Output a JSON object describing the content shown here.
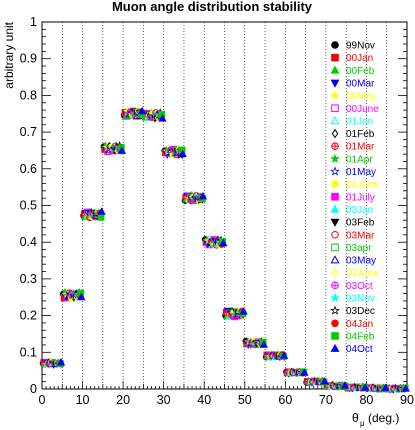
{
  "chart_data": {
    "type": "scatter",
    "title": "Muon angle distribution stability",
    "ylabel": "arbitrary unit",
    "xlabel_main": "θ",
    "xlabel_sub": "μ",
    "xlabel_unit": "(deg.)",
    "xlim": [
      0,
      90
    ],
    "ylim": [
      0,
      1
    ],
    "x_ticks": [
      "0",
      "10",
      "20",
      "30",
      "40",
      "50",
      "60",
      "70",
      "80",
      "90"
    ],
    "y_ticks": [
      "0",
      "0.1",
      "0.2",
      "0.3",
      "0.4",
      "0.5",
      "0.6",
      "0.7",
      "0.8",
      "0.9",
      "1"
    ],
    "grid": "vertical dotted lines at each 5 deg",
    "legend_position": "top-right",
    "bin_centers": [
      2.5,
      7.5,
      12.5,
      17.5,
      22.5,
      27.5,
      32.5,
      37.5,
      42.5,
      47.5,
      52.5,
      57.5,
      62.5,
      67.5,
      72.5,
      77.5,
      82.5,
      87.5
    ],
    "bin_values": [
      0.07,
      0.255,
      0.475,
      0.655,
      0.75,
      0.745,
      0.645,
      0.52,
      0.4,
      0.205,
      0.125,
      0.09,
      0.045,
      0.02,
      0.008,
      0.004,
      0.002,
      0.001
    ],
    "series": [
      {
        "name": "99Nov",
        "color": "#000000",
        "marker": "circle-filled"
      },
      {
        "name": "00Jan",
        "color": "#ff0000",
        "marker": "square-filled"
      },
      {
        "name": "00Feb",
        "color": "#00cc00",
        "marker": "triangle-up-filled"
      },
      {
        "name": "00Mar",
        "color": "#0000ff",
        "marker": "triangle-down-filled"
      },
      {
        "name": "00May",
        "color": "#ffff00",
        "marker": "star-filled"
      },
      {
        "name": "00June",
        "color": "#ff00ff",
        "marker": "square-open"
      },
      {
        "name": "01Jan",
        "color": "#00ffff",
        "marker": "triangle-up-open"
      },
      {
        "name": "01Feb",
        "color": "#000000",
        "marker": "diamond-open"
      },
      {
        "name": "01Mar",
        "color": "#ff0000",
        "marker": "crosscircle-open"
      },
      {
        "name": "01Apr",
        "color": "#00cc00",
        "marker": "star-filled"
      },
      {
        "name": "01May",
        "color": "#0000ff",
        "marker": "star-open"
      },
      {
        "name": "01June",
        "color": "#ffff00",
        "marker": "circle-filled"
      },
      {
        "name": "01July",
        "color": "#ff00ff",
        "marker": "square-filled"
      },
      {
        "name": "03Jan",
        "color": "#00ffff",
        "marker": "triangle-up-filled"
      },
      {
        "name": "03Feb",
        "color": "#000000",
        "marker": "triangle-down-filled"
      },
      {
        "name": "03Mar",
        "color": "#ff0000",
        "marker": "circle-open"
      },
      {
        "name": "03apr",
        "color": "#00cc00",
        "marker": "square-open"
      },
      {
        "name": "03May",
        "color": "#0000ff",
        "marker": "triangle-up-open"
      },
      {
        "name": "03June",
        "color": "#ffff00",
        "marker": "diamond-open"
      },
      {
        "name": "03Oct",
        "color": "#ff00ff",
        "marker": "crosscircle-open"
      },
      {
        "name": "03Nov",
        "color": "#00ffff",
        "marker": "star-filled"
      },
      {
        "name": "03Dec",
        "color": "#000000",
        "marker": "star-open"
      },
      {
        "name": "04Jan",
        "color": "#ff0000",
        "marker": "circle-filled"
      },
      {
        "name": "04Feb",
        "color": "#00cc00",
        "marker": "square-filled"
      },
      {
        "name": "04Oct",
        "color": "#0000ff",
        "marker": "triangle-up-filled"
      }
    ]
  }
}
